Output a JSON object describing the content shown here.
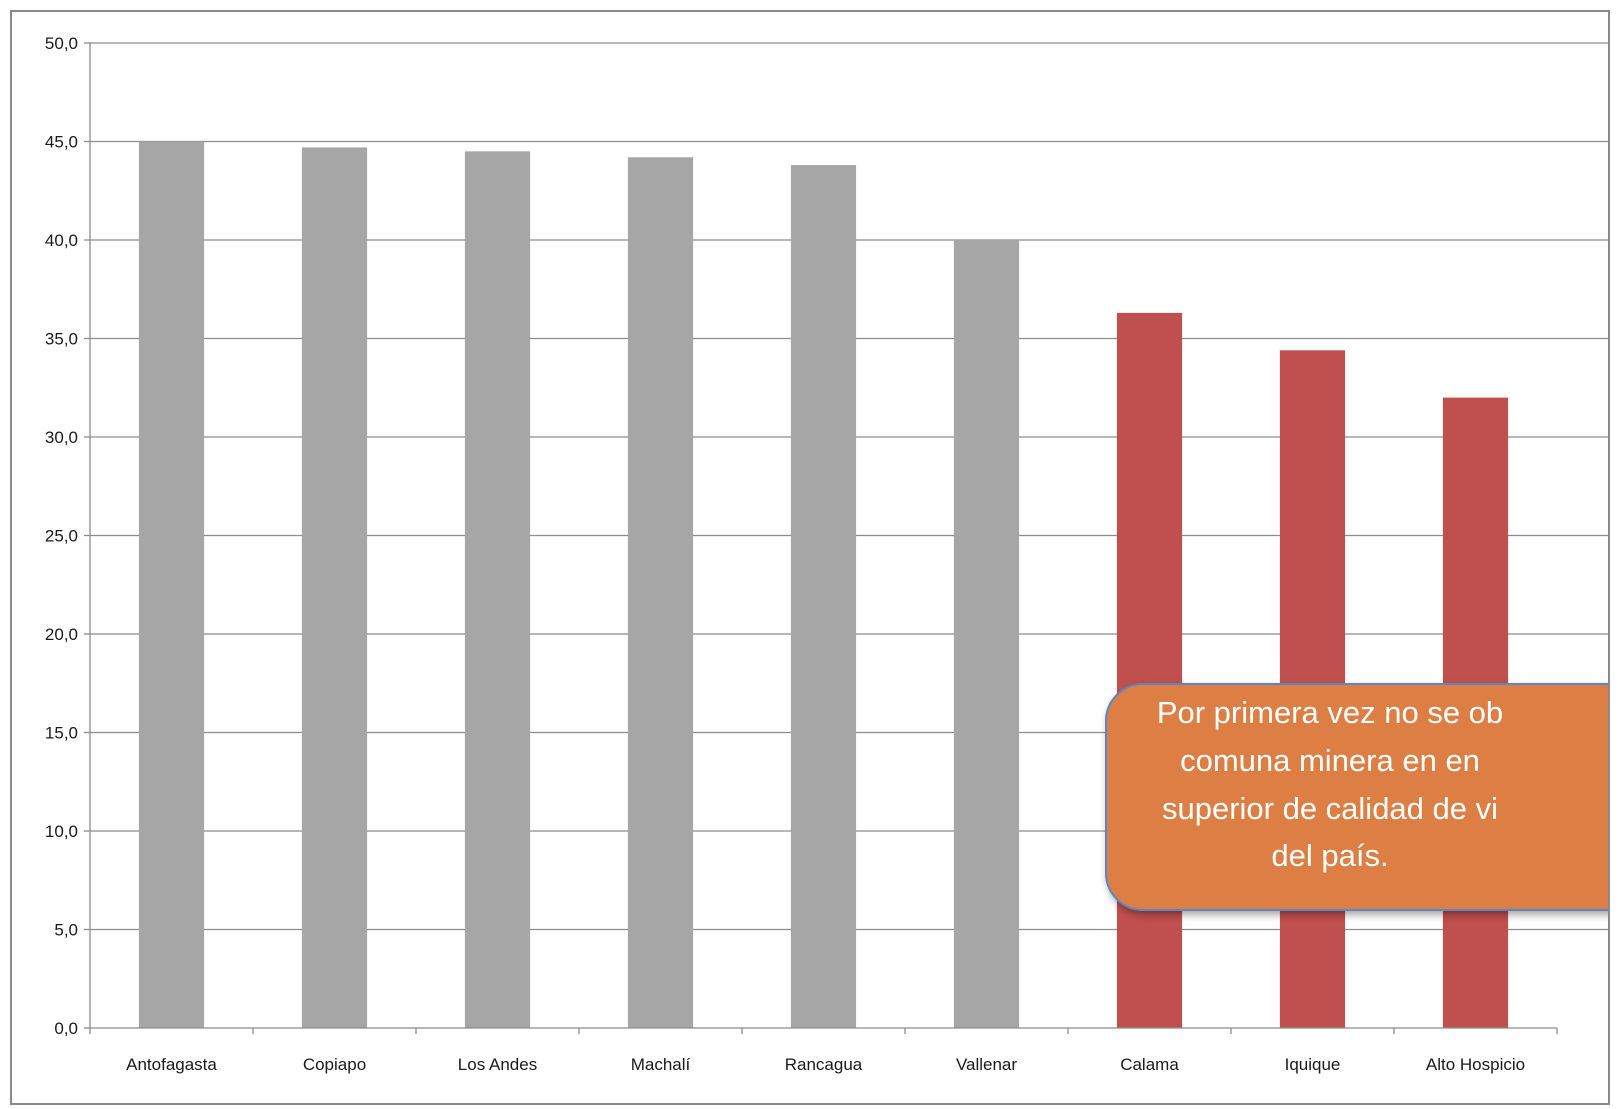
{
  "chart_data": {
    "type": "bar",
    "categories": [
      "Antofagasta",
      "Copiapo",
      "Los Andes",
      "Machalí",
      "Rancagua",
      "Vallenar",
      "Calama",
      "Iquique",
      "Alto Hospicio"
    ],
    "values": [
      45.0,
      44.7,
      44.5,
      44.2,
      43.8,
      40.0,
      36.3,
      34.4,
      32.0
    ],
    "bar_colors": [
      "#a6a6a6",
      "#a6a6a6",
      "#a6a6a6",
      "#a6a6a6",
      "#a6a6a6",
      "#a6a6a6",
      "#c0504d",
      "#c0504d",
      "#c0504d"
    ],
    "ylim": [
      0,
      50
    ],
    "yticks": [
      0,
      5,
      10,
      15,
      20,
      25,
      30,
      35,
      40,
      45,
      50
    ],
    "ytick_labels": [
      "0,0",
      "5,0",
      "10,0",
      "15,0",
      "20,0",
      "25,0",
      "30,0",
      "35,0",
      "40,0",
      "45,0",
      "50,0"
    ],
    "grid": true,
    "title": "",
    "xlabel": "",
    "ylabel": ""
  },
  "callout": {
    "lines": [
      "Por primera vez no se ob",
      "comuna minera en en",
      "superior de calidad de vi",
      "del país."
    ],
    "color": "#dd7f45",
    "border_color": "#5b86c4"
  }
}
